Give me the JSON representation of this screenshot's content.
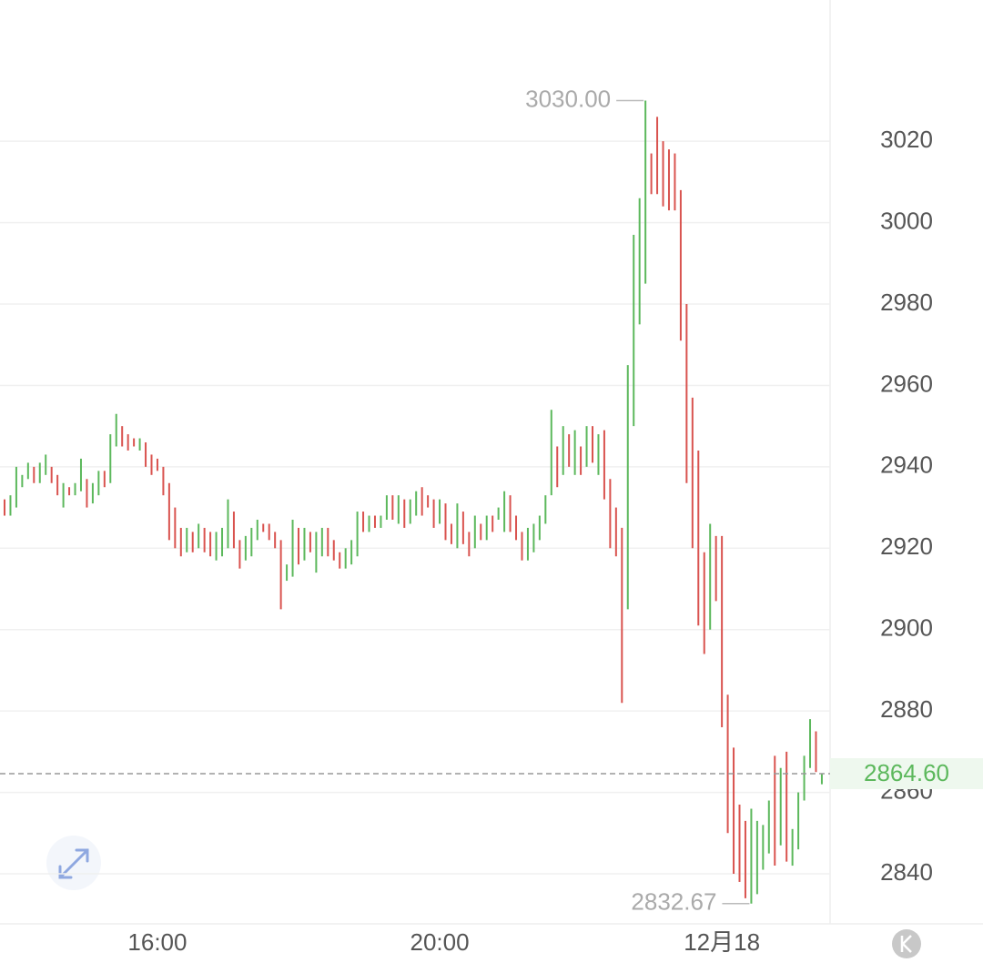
{
  "chart_data": {
    "type": "candlestick",
    "categories": [
      null,
      null,
      null,
      null,
      null,
      null,
      null,
      null,
      null,
      null,
      null,
      null,
      null,
      null,
      null,
      null,
      null,
      null,
      null,
      null,
      null,
      null,
      null,
      null,
      null,
      null,
      null,
      null,
      null,
      null,
      null,
      null,
      null,
      null,
      null,
      null,
      null,
      null,
      null,
      null,
      null,
      null,
      null,
      null,
      null,
      null,
      null,
      null,
      null,
      null,
      null,
      null,
      null,
      null,
      null,
      null,
      null,
      null,
      null,
      null,
      null,
      null,
      null,
      null,
      null,
      null,
      null,
      null,
      null,
      null,
      null,
      null,
      null,
      null,
      null,
      null,
      null,
      null,
      null,
      null,
      null,
      null,
      null,
      null,
      null,
      null,
      null,
      null,
      null,
      null,
      null,
      null,
      null,
      null,
      null,
      null,
      null,
      null,
      null,
      null,
      null,
      null,
      null,
      null,
      null,
      null,
      null,
      null,
      null,
      null,
      null,
      null,
      null,
      null,
      null,
      null,
      null,
      null,
      null,
      null,
      null,
      null,
      null,
      null,
      null,
      null,
      null,
      null,
      null,
      null,
      null,
      null,
      null,
      null,
      null,
      null,
      null,
      null,
      null,
      null
    ],
    "open": [
      2932,
      2928,
      2930,
      2935,
      2937,
      2940,
      2936,
      2938,
      2940,
      2938,
      2930,
      2935,
      2933,
      2934,
      2937,
      2931,
      2933,
      2939,
      2936,
      2945,
      2950,
      2948,
      2947,
      2944,
      2946,
      2943,
      2942,
      2940,
      2936,
      2930,
      2925,
      2919,
      2924,
      2920,
      2925,
      2924,
      2917,
      2918,
      2920,
      2929,
      2922,
      2917,
      2918,
      2922,
      2926,
      2926,
      2924,
      2922,
      2912,
      2913,
      2925,
      2917,
      2924,
      2914,
      2918,
      2925,
      2922,
      2919,
      2915,
      2916,
      2918,
      2929,
      2924,
      2928,
      2925,
      2927,
      2933,
      2926,
      2932,
      2926,
      2928,
      2935,
      2933,
      2932,
      2926,
      2931,
      2926,
      2920,
      2929,
      2924,
      2920,
      2926,
      2922,
      2928,
      2927,
      2924,
      2933,
      2928,
      2924,
      2917,
      2919,
      2922,
      2926,
      2933,
      2945,
      2938,
      2948,
      2938,
      2945,
      2940,
      2950,
      2938,
      2949,
      2937,
      2930,
      2925,
      2905,
      2950,
      2975,
      2985,
      3017,
      3026,
      3020,
      3018,
      3017,
      3008,
      2980,
      2957,
      2944,
      2919,
      2900,
      2923,
      2923,
      2884,
      2871,
      2857,
      2853,
      2832.67,
      2835,
      2841,
      2845,
      2869,
      2847,
      2870,
      2842,
      2846,
      2858,
      2866,
      2875,
      2862
    ],
    "close": [
      2928,
      2933,
      2940,
      2938,
      2941,
      2936,
      2941,
      2943,
      2936,
      2933,
      2936,
      2933,
      2936,
      2942,
      2930,
      2936,
      2939,
      2935,
      2948,
      2953,
      2945,
      2944,
      2945,
      2947,
      2940,
      2938,
      2939,
      2933,
      2922,
      2920,
      2918,
      2925,
      2919,
      2926,
      2919,
      2918,
      2924,
      2925,
      2932,
      2920,
      2915,
      2923,
      2925,
      2927,
      2924,
      2922,
      2920,
      2905,
      2916,
      2927,
      2916,
      2925,
      2919,
      2924,
      2925,
      2918,
      2917,
      2915,
      2920,
      2922,
      2929,
      2924,
      2928,
      2925,
      2928,
      2933,
      2927,
      2933,
      2925,
      2932,
      2934,
      2928,
      2930,
      2925,
      2932,
      2922,
      2921,
      2931,
      2921,
      2918,
      2928,
      2922,
      2928,
      2924,
      2930,
      2934,
      2924,
      2922,
      2917,
      2925,
      2926,
      2928,
      2933,
      2954,
      2935,
      2950,
      2940,
      2949,
      2938,
      2950,
      2941,
      2948,
      2932,
      2920,
      2918,
      2882,
      2965,
      2997,
      3006,
      3030,
      3007,
      3007,
      3004,
      3003,
      3003,
      2971,
      2936,
      2920,
      2901,
      2894,
      2926,
      2907,
      2876,
      2850,
      2840,
      2838,
      2834,
      2856,
      2853,
      2852,
      2858,
      2842,
      2866,
      2843,
      2851,
      2860,
      2869,
      2878,
      2865,
      2864.6
    ],
    "up_color": "#5cb85c",
    "down_color": "#d9534f",
    "ylim": [
      2827.7,
      3054.7
    ],
    "yticks": [
      2840,
      2860,
      2880,
      2900,
      2920,
      2940,
      2960,
      2980,
      3000,
      3020
    ],
    "xticks": [
      {
        "value": 26,
        "label": "16:00"
      },
      {
        "value": 74,
        "label": "20:00"
      },
      {
        "value": 122,
        "label": "12月18"
      }
    ],
    "grid": true,
    "max_label": {
      "value": 3030,
      "label": "3030.00"
    },
    "min_label": {
      "value": 2832.67,
      "label": "2832.67"
    },
    "last_price": {
      "value": 2864.6,
      "label": "2864.60"
    }
  }
}
